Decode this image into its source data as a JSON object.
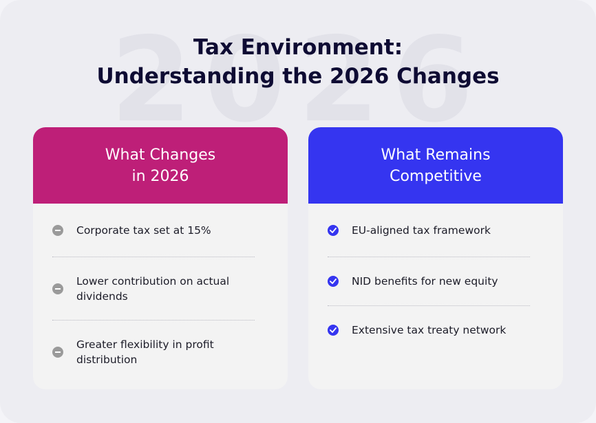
{
  "watermark": "2026",
  "title": {
    "line1": "Tax Environment:",
    "line2": "Understanding the 2026 Changes"
  },
  "colors": {
    "changes_header": "#be1f78",
    "competitive_header": "#3535f0",
    "title_text": "#0e0b33"
  },
  "changes": {
    "heading": "What Changes\nin 2026",
    "icon": "minus-circle-icon",
    "items": [
      {
        "text": "Corporate tax set at 15%"
      },
      {
        "text": "Lower contribution on actual dividends"
      },
      {
        "text": "Greater flexibility in profit distribution"
      }
    ]
  },
  "competitive": {
    "heading": "What Remains\nCompetitive",
    "icon": "check-circle-icon",
    "items": [
      {
        "text": "EU-aligned tax framework"
      },
      {
        "text": "NID benefits for new equity"
      },
      {
        "text": "Extensive tax treaty network"
      }
    ]
  }
}
